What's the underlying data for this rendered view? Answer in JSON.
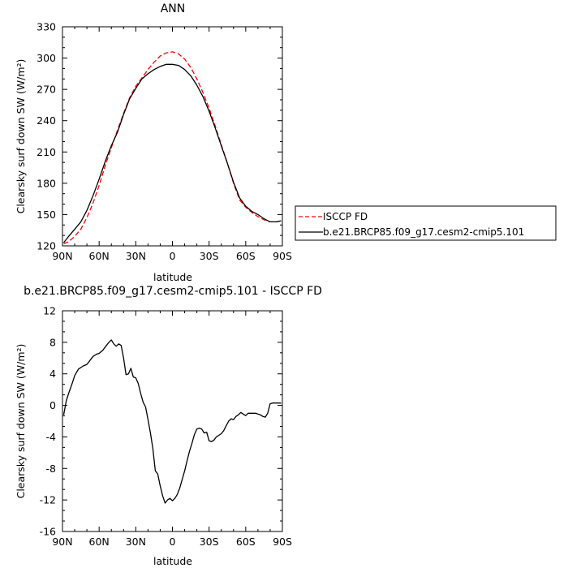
{
  "chart_data": [
    {
      "type": "line",
      "title": "ANN",
      "xlabel": "latitude",
      "ylabel": "Clearsky surf down SW (W/m²)",
      "x_tick_labels": [
        "90N",
        "60N",
        "30N",
        "0",
        "30S",
        "60S",
        "90S"
      ],
      "x_ticks": [
        90,
        60,
        30,
        0,
        -30,
        -60,
        -90
      ],
      "xlim": [
        90,
        -90
      ],
      "ylim": [
        120,
        330
      ],
      "y_ticks": [
        120,
        150,
        180,
        210,
        240,
        270,
        300,
        330
      ],
      "legend_placement": "right",
      "series": [
        {
          "name": "ISCCP FD",
          "color": "#ff0000",
          "dash": "dashed",
          "x": [
            89,
            85,
            80,
            75,
            70,
            65,
            60,
            55,
            50,
            45,
            40,
            35,
            30,
            25,
            20,
            15,
            10,
            5,
            0,
            -5,
            -10,
            -15,
            -20,
            -25,
            -30,
            -35,
            -40,
            -45,
            -50,
            -55,
            -60,
            -65,
            -70,
            -75,
            -80,
            -85,
            -89
          ],
          "y": [
            122,
            124,
            129,
            136,
            147,
            161,
            178,
            197,
            214,
            231,
            247,
            262,
            273,
            281,
            289,
            296,
            302,
            305,
            306,
            304,
            299,
            291,
            280,
            267,
            252,
            235,
            217,
            199,
            180,
            164,
            157,
            152,
            148,
            145,
            143,
            143,
            144
          ]
        },
        {
          "name": "b.e21.BRCP85.f09_g17.cesm2-cmip5.101",
          "color": "#000000",
          "dash": "solid",
          "x": [
            89,
            85,
            80,
            75,
            70,
            65,
            60,
            55,
            50,
            45,
            40,
            35,
            30,
            25,
            20,
            15,
            10,
            5,
            0,
            -5,
            -10,
            -15,
            -20,
            -25,
            -30,
            -35,
            -40,
            -45,
            -50,
            -55,
            -60,
            -65,
            -70,
            -75,
            -80,
            -85,
            -89
          ],
          "y": [
            123,
            129,
            136,
            143,
            154,
            168,
            184,
            201,
            216,
            229,
            246,
            261,
            271,
            280,
            285,
            289,
            292,
            294,
            294,
            293,
            289,
            283,
            274,
            263,
            249,
            233,
            216,
            199,
            181,
            166,
            158,
            153,
            150,
            146,
            143,
            143,
            144
          ]
        }
      ]
    },
    {
      "type": "line",
      "title": "b.e21.BRCP85.f09_g17.cesm2-cmip5.101 - ISCCP FD",
      "xlabel": "latitude",
      "ylabel": "Clearsky surf down SW (W/m²)",
      "x_tick_labels": [
        "90N",
        "60N",
        "30N",
        "0",
        "30S",
        "60S",
        "90S"
      ],
      "x_ticks": [
        90,
        60,
        30,
        0,
        -30,
        -60,
        -90
      ],
      "xlim": [
        90,
        -90
      ],
      "ylim": [
        -16,
        12
      ],
      "y_ticks": [
        -16,
        -12,
        -8,
        -4,
        0,
        4,
        8,
        12
      ],
      "series": [
        {
          "color": "#000000",
          "dash": "solid",
          "x": [
            89,
            87,
            85,
            82,
            80,
            77,
            73,
            70,
            68,
            65,
            62,
            60,
            57,
            54,
            52,
            50,
            48,
            46,
            44,
            42,
            40,
            38,
            36,
            34,
            32,
            30,
            28,
            26,
            24,
            22,
            20,
            18,
            16,
            14,
            12,
            10,
            8,
            6,
            4,
            2,
            0,
            -2,
            -4,
            -6,
            -8,
            -10,
            -12,
            -14,
            -16,
            -18,
            -20,
            -22,
            -24,
            -26,
            -28,
            -30,
            -32,
            -34,
            -36,
            -38,
            -40,
            -42,
            -44,
            -46,
            -48,
            -50,
            -52,
            -54,
            -56,
            -58,
            -60,
            -62,
            -64,
            -66,
            -68,
            -70,
            -72,
            -74,
            -76,
            -78,
            -80,
            -82,
            -84,
            -86,
            -88,
            -89
          ],
          "y": [
            -1.2,
            0.5,
            1.5,
            2.8,
            3.8,
            4.6,
            5.0,
            5.2,
            5.6,
            6.2,
            6.5,
            6.6,
            7.0,
            7.6,
            8.0,
            8.3,
            7.8,
            7.5,
            7.8,
            7.6,
            6.0,
            3.9,
            4.0,
            4.7,
            3.6,
            3.5,
            2.8,
            1.5,
            0.4,
            -0.2,
            -1.8,
            -3.5,
            -5.5,
            -8.3,
            -8.7,
            -10.2,
            -11.5,
            -12.4,
            -12.0,
            -11.8,
            -12.1,
            -11.8,
            -11.3,
            -10.5,
            -9.4,
            -8.3,
            -7.0,
            -5.8,
            -4.8,
            -3.7,
            -3.0,
            -2.9,
            -3.0,
            -3.5,
            -3.4,
            -4.5,
            -4.6,
            -4.4,
            -4.0,
            -3.8,
            -3.6,
            -3.2,
            -2.6,
            -2.0,
            -1.7,
            -1.8,
            -1.4,
            -1.2,
            -0.9,
            -1.1,
            -1.3,
            -1.0,
            -1.0,
            -1.0,
            -1.0,
            -1.1,
            -1.2,
            -1.4,
            -1.5,
            -1.0,
            0.2,
            0.3,
            0.3,
            0.3,
            0.3,
            0.3
          ]
        }
      ]
    }
  ],
  "legend": {
    "items": [
      {
        "label": "ISCCP FD",
        "color": "#ff0000",
        "dash": "dashed"
      },
      {
        "label": "b.e21.BRCP85.f09_g17.cesm2-cmip5.101",
        "color": "#000000",
        "dash": "solid"
      }
    ]
  }
}
